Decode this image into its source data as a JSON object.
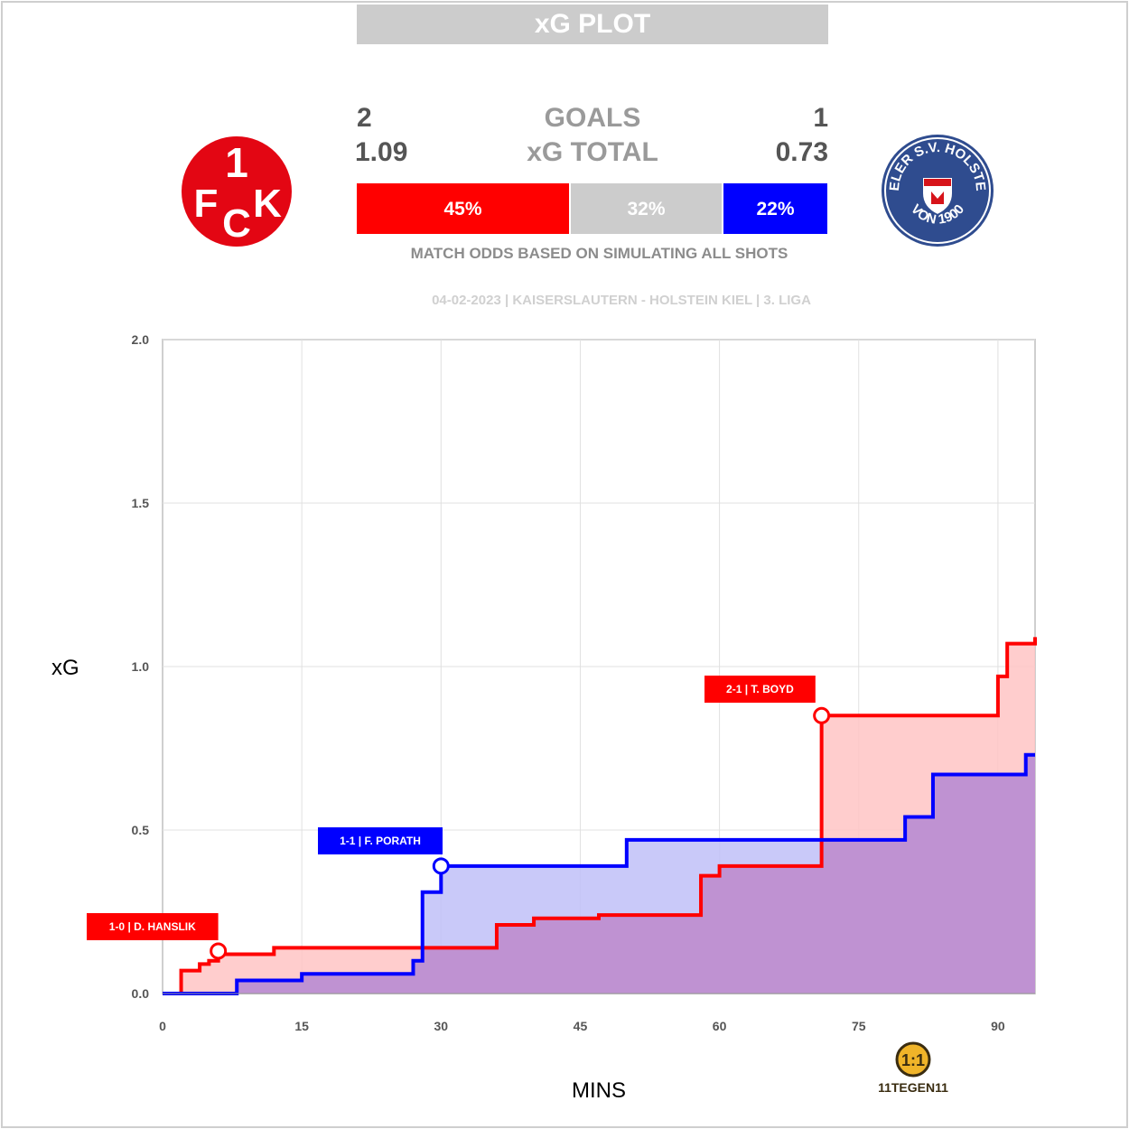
{
  "title": "xG PLOT",
  "summary": {
    "home_goals": "2",
    "away_goals": "1",
    "goals_label": "GOALS",
    "home_xg": "1.09",
    "away_xg": "0.73",
    "xg_label": "xG TOTAL"
  },
  "odds": {
    "home": "45%",
    "draw": "32%",
    "away": "22%",
    "home_value": 0.45,
    "draw_value": 0.32,
    "away_value": 0.22,
    "note": "MATCH ODDS BASED ON SIMULATING ALL SHOTS"
  },
  "match_info": "04-02-2023 | KAISERSLAUTERN - HOLSTEIN KIEL | 3. LIGA",
  "teams": {
    "home_logo_text": [
      "1",
      "F",
      "C",
      "K"
    ],
    "away_logo_text": [
      "KIELER S.V. HOLSTEIN",
      "VON 1900"
    ]
  },
  "brand": "11TEGEN11",
  "colors": {
    "home": "#ff0000",
    "away": "#0000ff",
    "home_fill": "#ffc4c4",
    "away_fill": "#c0c0f8",
    "overlap_fill": "#bf8fd0",
    "draw": "#cccccc"
  },
  "chart_data": {
    "type": "line",
    "step": true,
    "xlabel": "MINS",
    "ylabel": "xG",
    "xlim": [
      0,
      94
    ],
    "ylim": [
      0,
      2.0
    ],
    "xticks": [
      0,
      15,
      30,
      45,
      60,
      75,
      90
    ],
    "yticks": [
      0.0,
      0.5,
      1.0,
      1.5,
      2.0
    ],
    "ytick_labels": [
      "0.0",
      "0.5",
      "1.0",
      "1.5",
      "2.0"
    ],
    "grid": true,
    "series": [
      {
        "name": "Kaiserslautern",
        "color": "#ff0000",
        "steps": [
          [
            0,
            0
          ],
          [
            2,
            0.07
          ],
          [
            4,
            0.09
          ],
          [
            5,
            0.1
          ],
          [
            6,
            0.12
          ],
          [
            12,
            0.14
          ],
          [
            36,
            0.21
          ],
          [
            40,
            0.23
          ],
          [
            47,
            0.24
          ],
          [
            58,
            0.36
          ],
          [
            60,
            0.39
          ],
          [
            71,
            0.85
          ],
          [
            90,
            0.97
          ],
          [
            91,
            1.07
          ],
          [
            94,
            1.09
          ]
        ],
        "end": 94
      },
      {
        "name": "Holstein Kiel",
        "color": "#0000ff",
        "steps": [
          [
            0,
            0
          ],
          [
            8,
            0.04
          ],
          [
            15,
            0.06
          ],
          [
            27,
            0.1
          ],
          [
            28,
            0.31
          ],
          [
            30,
            0.39
          ],
          [
            50,
            0.47
          ],
          [
            80,
            0.54
          ],
          [
            83,
            0.67
          ],
          [
            93,
            0.73
          ]
        ],
        "end": 94
      }
    ],
    "goals": [
      {
        "label": "1-0 | D. HANSLIK",
        "team": "home",
        "x": 6,
        "y": 0.13
      },
      {
        "label": "1-1 | F. PORATH",
        "team": "away",
        "x": 30,
        "y": 0.39
      },
      {
        "label": "2-1 | T. BOYD",
        "team": "home",
        "x": 71,
        "y": 0.85
      }
    ]
  }
}
